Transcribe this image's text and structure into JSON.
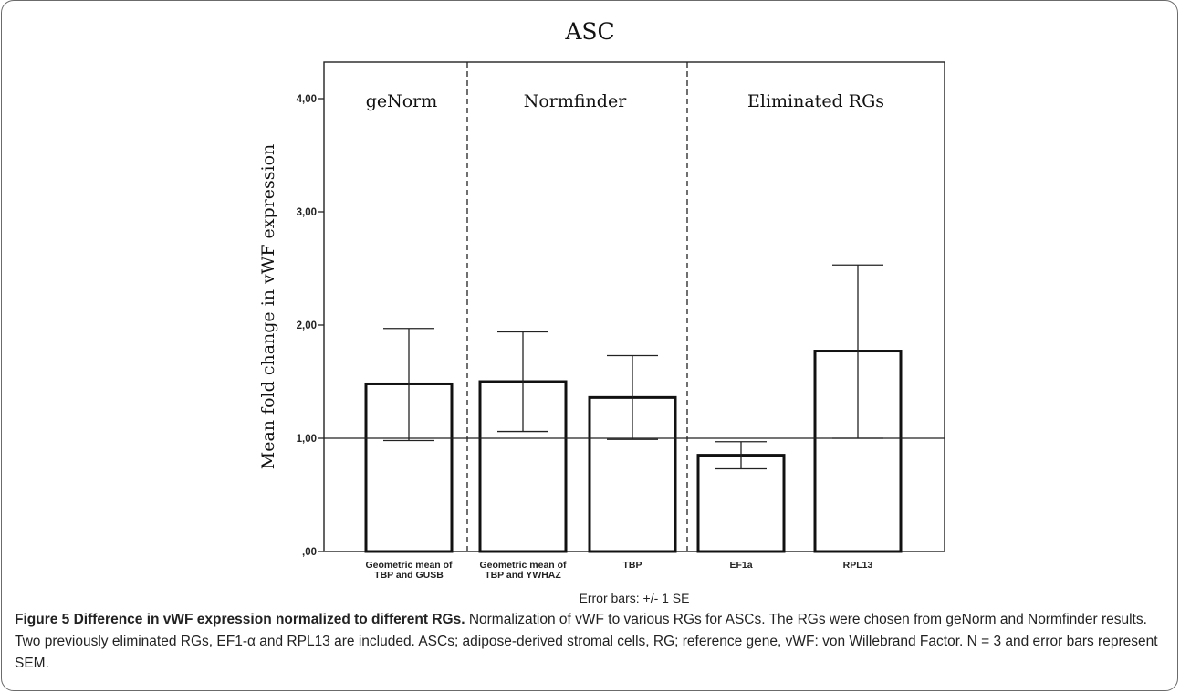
{
  "chart_data": {
    "type": "bar",
    "title": "ASC",
    "ylabel": "Mean fold change in vWF expression",
    "xlabel": "Error bars: +/- 1 SE",
    "ylim": [
      0,
      4.35
    ],
    "yticks": [
      {
        "value": 0,
        "label": ",00"
      },
      {
        "value": 1,
        "label": "1,00"
      },
      {
        "value": 2,
        "label": "2,00"
      },
      {
        "value": 3,
        "label": "3,00"
      },
      {
        "value": 4,
        "label": "4,00"
      }
    ],
    "reference_line": 1.0,
    "groups": [
      {
        "label": "geNorm",
        "categories": [
          0
        ]
      },
      {
        "label": "Normfinder",
        "categories": [
          1,
          2
        ]
      },
      {
        "label": "Eliminated RGs",
        "categories": [
          3,
          4
        ]
      }
    ],
    "categories": [
      [
        "Geometric mean of",
        "TBP and GUSB"
      ],
      [
        "Geometric mean of",
        "TBP and YWHAZ"
      ],
      [
        "TBP"
      ],
      [
        "EF1a"
      ],
      [
        "RPL13"
      ]
    ],
    "values": [
      1.48,
      1.5,
      1.36,
      0.85,
      1.77
    ],
    "error_upper": [
      1.97,
      1.94,
      1.73,
      0.97,
      2.53
    ],
    "error_lower": [
      0.98,
      1.06,
      0.99,
      0.73,
      1.0
    ],
    "grid": false
  },
  "caption": {
    "label": "Figure 5 Difference in vWF expression normalized to different RGs.",
    "text": " Normalization of vWF to various RGs for ASCs. The RGs were chosen from geNorm and Normfinder results. Two previously eliminated RGs, EF1-α and RPL13 are included. ASCs; adipose-derived stromal cells, RG; reference gene, vWF: von Willebrand Factor. N = 3 and error bars represent SEM."
  }
}
